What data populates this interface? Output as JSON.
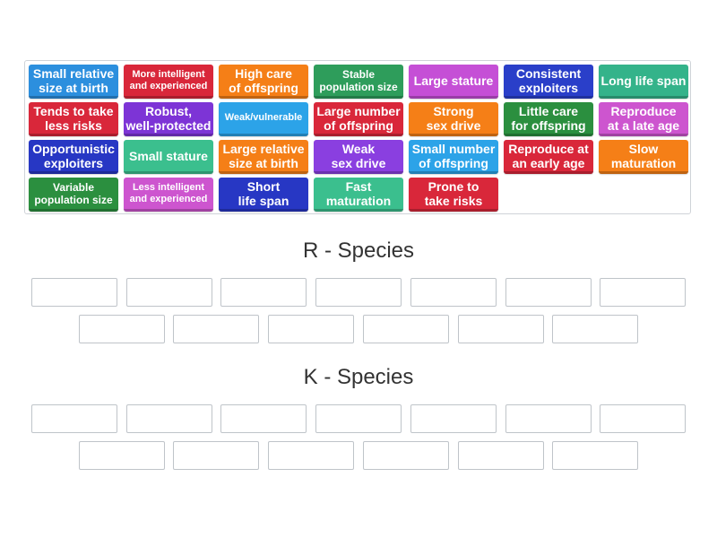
{
  "colors": {
    "blue": "#2c8fde",
    "red": "#d9273a",
    "orange": "#f57f17",
    "green": "#2e9d5b",
    "magenta": "#c54fd6",
    "navy": "#2a3fc9",
    "teal": "#34b38a",
    "purple": "#7d34d6",
    "sky": "#2ca3e8",
    "dkgreen": "#2b8f3f",
    "pink": "#cd55cf",
    "royal": "#2737c4",
    "violet": "#8a3fe0",
    "mint": "#3bbf8e"
  },
  "tiles": [
    {
      "text": "Small relative\nsize at birth",
      "color": "blue",
      "size": "normal"
    },
    {
      "text": "More intelligent\nand experienced",
      "color": "red",
      "size": "small"
    },
    {
      "text": "High care\nof offspring",
      "color": "orange",
      "size": "normal"
    },
    {
      "text": "Stable\npopulation size",
      "color": "green",
      "size": "small2"
    },
    {
      "text": "Large stature",
      "color": "magenta",
      "size": "normal"
    },
    {
      "text": "Consistent\nexploiters",
      "color": "navy",
      "size": "normal"
    },
    {
      "text": "Long life span",
      "color": "teal",
      "size": "normal"
    },
    {
      "text": "Tends to take\nless risks",
      "color": "red",
      "size": "normal"
    },
    {
      "text": "Robust,\nwell-protected",
      "color": "purple",
      "size": "normal"
    },
    {
      "text": "Weak/vulnerable",
      "color": "sky",
      "size": "small"
    },
    {
      "text": "Large number\nof offspring",
      "color": "red",
      "size": "normal"
    },
    {
      "text": "Strong\nsex drive",
      "color": "orange",
      "size": "normal"
    },
    {
      "text": "Little care\nfor offspring",
      "color": "dkgreen",
      "size": "normal"
    },
    {
      "text": "Reproduce\nat a late age",
      "color": "pink",
      "size": "normal"
    },
    {
      "text": "Opportunistic\nexploiters",
      "color": "royal",
      "size": "normal"
    },
    {
      "text": "Small stature",
      "color": "mint",
      "size": "normal"
    },
    {
      "text": "Large relative\nsize at birth",
      "color": "orange",
      "size": "normal"
    },
    {
      "text": "Weak\nsex drive",
      "color": "violet",
      "size": "normal"
    },
    {
      "text": "Small number\nof offspring",
      "color": "sky",
      "size": "normal"
    },
    {
      "text": "Reproduce at\nan early age",
      "color": "red",
      "size": "normal"
    },
    {
      "text": "Slow\nmaturation",
      "color": "orange",
      "size": "normal"
    },
    {
      "text": "Variable\npopulation size",
      "color": "dkgreen",
      "size": "small2"
    },
    {
      "text": "Less intelligent\nand experienced",
      "color": "pink",
      "size": "small"
    },
    {
      "text": "Short\nlife span",
      "color": "royal",
      "size": "normal"
    },
    {
      "text": "Fast\nmaturation",
      "color": "mint",
      "size": "normal"
    },
    {
      "text": "Prone to\ntake risks",
      "color": "red",
      "size": "normal"
    }
  ],
  "groups": [
    {
      "title": "R - Species"
    },
    {
      "title": "K - Species"
    }
  ]
}
